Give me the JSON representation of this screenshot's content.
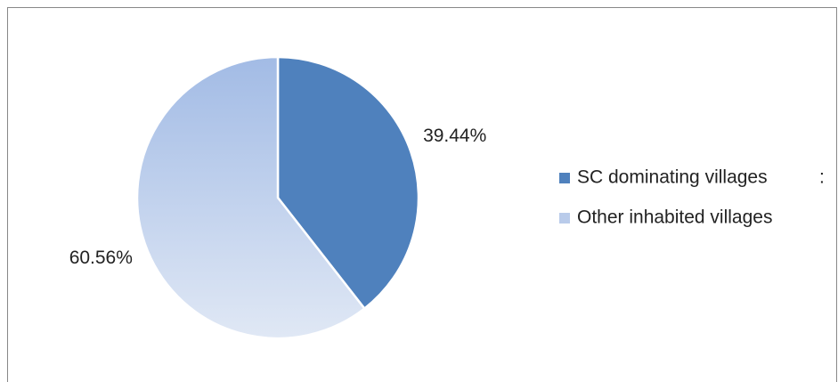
{
  "chart_data": {
    "type": "pie",
    "categories": [
      "SC dominating villages          :",
      "Other inhabited villages"
    ],
    "values": [
      39.44,
      60.56
    ],
    "value_labels": [
      "39.44%",
      "60.56%"
    ],
    "colors": [
      "#4f81bd",
      "#b9cbea"
    ],
    "legend": "right"
  }
}
